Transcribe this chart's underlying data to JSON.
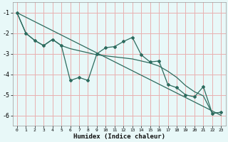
{
  "title": "",
  "xlabel": "Humidex (Indice chaleur)",
  "background_color": "#e8f8f8",
  "grid_color": "#e8b0b0",
  "line_color": "#2d6b5e",
  "x_values": [
    0,
    1,
    2,
    3,
    4,
    5,
    6,
    7,
    8,
    9,
    10,
    11,
    12,
    13,
    14,
    15,
    16,
    17,
    18,
    19,
    20,
    21,
    22,
    23
  ],
  "line1_y": [
    -1.0,
    -2.0,
    -2.35,
    -2.6,
    -2.3,
    -2.6,
    -4.3,
    -4.15,
    -4.3,
    -3.0,
    -2.7,
    -2.65,
    -2.4,
    -2.2,
    -3.05,
    -3.4,
    -3.35,
    -4.5,
    -4.65,
    -5.0,
    -5.1,
    -4.6,
    -5.9,
    -5.85
  ],
  "line2_y": [
    -1.0,
    -2.0,
    -2.35,
    -2.6,
    -2.3,
    -2.6,
    -2.75,
    -2.85,
    -2.95,
    -3.05,
    -3.1,
    -3.15,
    -3.2,
    -3.25,
    -3.35,
    -3.45,
    -3.6,
    -3.85,
    -4.15,
    -4.55,
    -4.85,
    -5.05,
    -5.9,
    -5.85
  ],
  "trend_x": [
    0,
    23
  ],
  "trend_y": [
    -1.0,
    -6.0
  ],
  "ylim": [
    -6.5,
    -0.5
  ],
  "xlim": [
    -0.5,
    23.5
  ],
  "yticks": [
    -6,
    -5,
    -4,
    -3,
    -2,
    -1
  ],
  "xticks": [
    0,
    1,
    2,
    3,
    4,
    5,
    6,
    7,
    8,
    9,
    10,
    11,
    12,
    13,
    14,
    15,
    16,
    17,
    18,
    19,
    20,
    21,
    22,
    23
  ]
}
